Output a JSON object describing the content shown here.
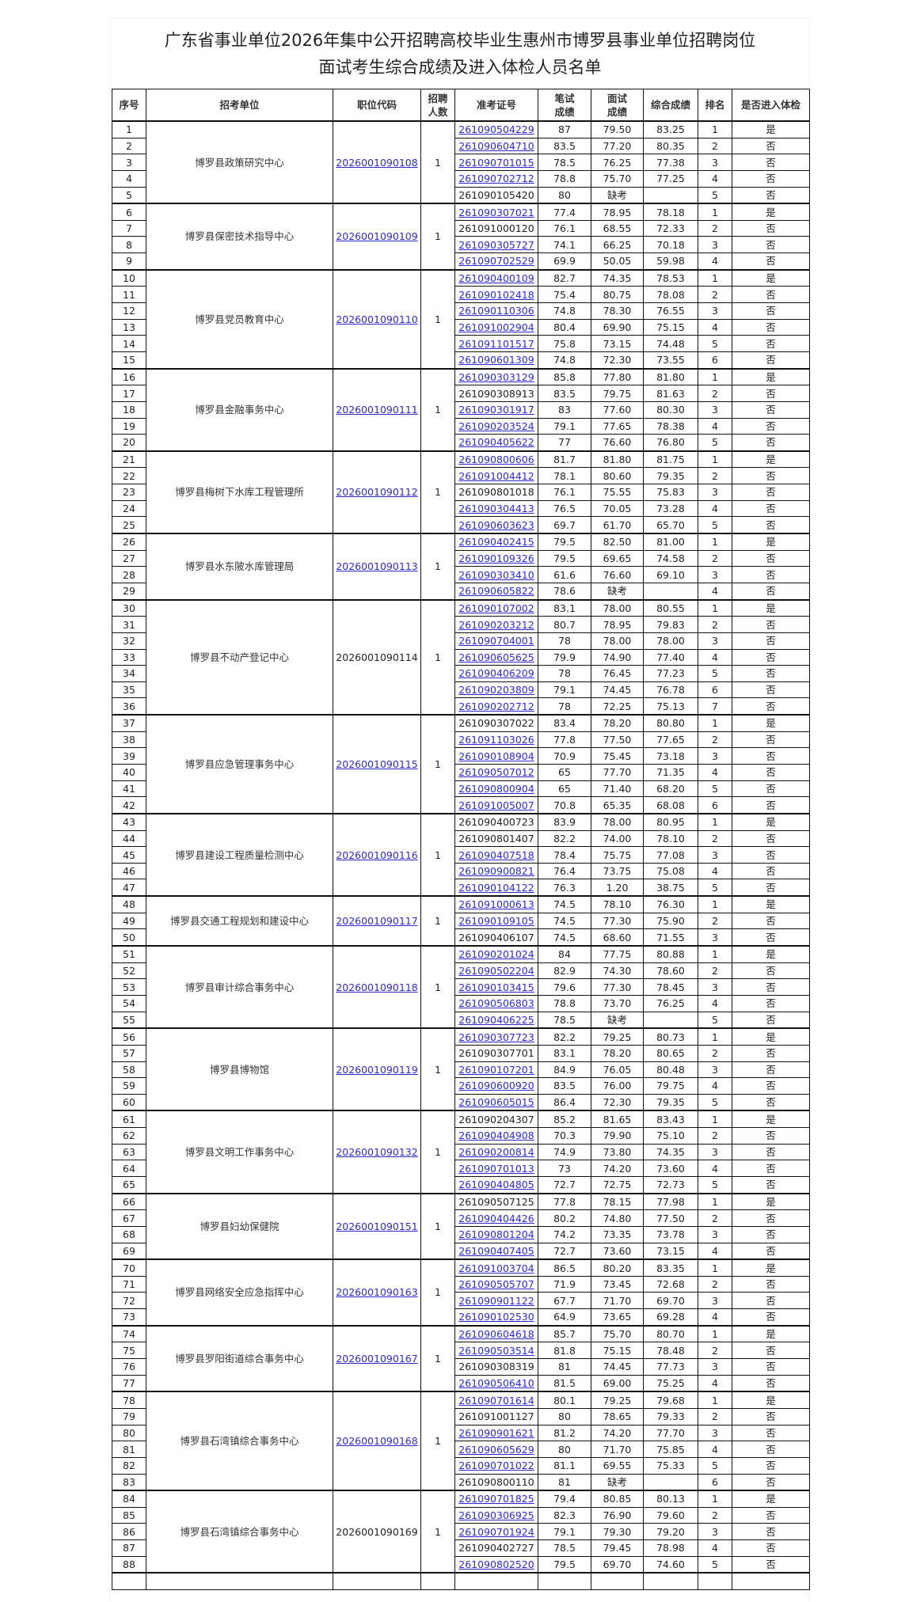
{
  "title_line1": "广东省事业单位2026年集中公开招聘高校毕业生惠州市博罗县事业单位招聘岗位",
  "title_line2": "面试考生综合成绩及进入体检人员名单",
  "headers": {
    "seq": "序号",
    "unit": "招考单位",
    "code": "职位代码",
    "count": "招聘人数",
    "id": "准考证号",
    "written": "笔试成绩",
    "interview": "面试成绩",
    "total": "综合成绩",
    "rank": "排名",
    "pass": "是否进入体检"
  },
  "link_color": "#2b2bd0",
  "groups": [
    {
      "unit": "博罗县政策研究中心",
      "code": "2026001090108",
      "code_link": true,
      "count": "1",
      "rows": [
        [
          "1",
          "261090504229",
          1,
          "87",
          "79.50",
          "83.25",
          "1",
          "是"
        ],
        [
          "2",
          "261090604710",
          1,
          "83.5",
          "77.20",
          "80.35",
          "2",
          "否"
        ],
        [
          "3",
          "261090701015",
          1,
          "78.5",
          "76.25",
          "77.38",
          "3",
          "否"
        ],
        [
          "4",
          "261090702712",
          1,
          "78.8",
          "75.70",
          "77.25",
          "4",
          "否"
        ],
        [
          "5",
          "261090105420",
          0,
          "80",
          "缺考",
          "",
          "5",
          "否"
        ]
      ]
    },
    {
      "unit": "博罗县保密技术指导中心",
      "code": "2026001090109",
      "code_link": true,
      "count": "1",
      "rows": [
        [
          "6",
          "261090307021",
          1,
          "77.4",
          "78.95",
          "78.18",
          "1",
          "是"
        ],
        [
          "7",
          "261091000120",
          0,
          "76.1",
          "68.55",
          "72.33",
          "2",
          "否"
        ],
        [
          "8",
          "261090305727",
          1,
          "74.1",
          "66.25",
          "70.18",
          "3",
          "否"
        ],
        [
          "9",
          "261090702529",
          1,
          "69.9",
          "50.05",
          "59.98",
          "4",
          "否"
        ]
      ]
    },
    {
      "unit": "博罗县党员教育中心",
      "code": "2026001090110",
      "code_link": true,
      "count": "1",
      "rows": [
        [
          "10",
          "261090400109",
          1,
          "82.7",
          "74.35",
          "78.53",
          "1",
          "是"
        ],
        [
          "11",
          "261090102418",
          1,
          "75.4",
          "80.75",
          "78.08",
          "2",
          "否"
        ],
        [
          "12",
          "261090110306",
          1,
          "74.8",
          "78.30",
          "76.55",
          "3",
          "否"
        ],
        [
          "13",
          "261091002904",
          1,
          "80.4",
          "69.90",
          "75.15",
          "4",
          "否"
        ],
        [
          "14",
          "261091101517",
          1,
          "75.8",
          "73.15",
          "74.48",
          "5",
          "否"
        ],
        [
          "15",
          "261090601309",
          1,
          "74.8",
          "72.30",
          "73.55",
          "6",
          "否"
        ]
      ]
    },
    {
      "unit": "博罗县金融事务中心",
      "code": "2026001090111",
      "code_link": true,
      "count": "1",
      "rows": [
        [
          "16",
          "261090303129",
          1,
          "85.8",
          "77.80",
          "81.80",
          "1",
          "是"
        ],
        [
          "17",
          "261090308913",
          0,
          "83.5",
          "79.75",
          "81.63",
          "2",
          "否"
        ],
        [
          "18",
          "261090301917",
          1,
          "83",
          "77.60",
          "80.30",
          "3",
          "否"
        ],
        [
          "19",
          "261090203524",
          1,
          "79.1",
          "77.65",
          "78.38",
          "4",
          "否"
        ],
        [
          "20",
          "261090405622",
          1,
          "77",
          "76.60",
          "76.80",
          "5",
          "否"
        ]
      ]
    },
    {
      "unit": "博罗县梅树下水库工程管理所",
      "code": "2026001090112",
      "code_link": true,
      "count": "1",
      "rows": [
        [
          "21",
          "261090800606",
          1,
          "81.7",
          "81.80",
          "81.75",
          "1",
          "是"
        ],
        [
          "22",
          "261091004412",
          1,
          "78.1",
          "80.60",
          "79.35",
          "2",
          "否"
        ],
        [
          "23",
          "261090801018",
          0,
          "76.1",
          "75.55",
          "75.83",
          "3",
          "否"
        ],
        [
          "24",
          "261090304413",
          1,
          "76.5",
          "70.05",
          "73.28",
          "4",
          "否"
        ],
        [
          "25",
          "261090603623",
          1,
          "69.7",
          "61.70",
          "65.70",
          "5",
          "否"
        ]
      ]
    },
    {
      "unit": "博罗县水东陂水库管理局",
      "code": "2026001090113",
      "code_link": true,
      "count": "1",
      "rows": [
        [
          "26",
          "261090402415",
          1,
          "79.5",
          "82.50",
          "81.00",
          "1",
          "是"
        ],
        [
          "27",
          "261090109326",
          1,
          "79.5",
          "69.65",
          "74.58",
          "2",
          "否"
        ],
        [
          "28",
          "261090303410",
          1,
          "61.6",
          "76.60",
          "69.10",
          "3",
          "否"
        ],
        [
          "29",
          "261090605822",
          1,
          "78.6",
          "缺考",
          "",
          "4",
          "否"
        ]
      ]
    },
    {
      "unit": "博罗县不动产登记中心",
      "code": "2026001090114",
      "code_link": false,
      "count": "1",
      "rows": [
        [
          "30",
          "261090107002",
          1,
          "83.1",
          "78.00",
          "80.55",
          "1",
          "是"
        ],
        [
          "31",
          "261090203212",
          1,
          "80.7",
          "78.95",
          "79.83",
          "2",
          "否"
        ],
        [
          "32",
          "261090704001",
          1,
          "78",
          "78.00",
          "78.00",
          "3",
          "否"
        ],
        [
          "33",
          "261090605625",
          1,
          "79.9",
          "74.90",
          "77.40",
          "4",
          "否"
        ],
        [
          "34",
          "261090406209",
          1,
          "78",
          "76.45",
          "77.23",
          "5",
          "否"
        ],
        [
          "35",
          "261090203809",
          1,
          "79.1",
          "74.45",
          "76.78",
          "6",
          "否"
        ],
        [
          "36",
          "261090202712",
          1,
          "78",
          "72.25",
          "75.13",
          "7",
          "否"
        ]
      ]
    },
    {
      "unit": "博罗县应急管理事务中心",
      "code": "2026001090115",
      "code_link": true,
      "count": "1",
      "rows": [
        [
          "37",
          "261090307022",
          0,
          "83.4",
          "78.20",
          "80.80",
          "1",
          "是"
        ],
        [
          "38",
          "261091103026",
          1,
          "77.8",
          "77.50",
          "77.65",
          "2",
          "否"
        ],
        [
          "39",
          "261090108904",
          1,
          "70.9",
          "75.45",
          "73.18",
          "3",
          "否"
        ],
        [
          "40",
          "261090507012",
          1,
          "65",
          "77.70",
          "71.35",
          "4",
          "否"
        ],
        [
          "41",
          "261090800904",
          1,
          "65",
          "71.40",
          "68.20",
          "5",
          "否"
        ],
        [
          "42",
          "261091005007",
          1,
          "70.8",
          "65.35",
          "68.08",
          "6",
          "否"
        ]
      ]
    },
    {
      "unit": "博罗县建设工程质量检测中心",
      "code": "2026001090116",
      "code_link": true,
      "count": "1",
      "rows": [
        [
          "43",
          "261090400723",
          0,
          "83.9",
          "78.00",
          "80.95",
          "1",
          "是"
        ],
        [
          "44",
          "261090801407",
          0,
          "82.2",
          "74.00",
          "78.10",
          "2",
          "否"
        ],
        [
          "45",
          "261090407518",
          1,
          "78.4",
          "75.75",
          "77.08",
          "3",
          "否"
        ],
        [
          "46",
          "261090900821",
          1,
          "76.4",
          "73.75",
          "75.08",
          "4",
          "否"
        ],
        [
          "47",
          "261090104122",
          1,
          "76.3",
          "1.20",
          "38.75",
          "5",
          "否"
        ]
      ]
    },
    {
      "unit": "博罗县交通工程规划和建设中心",
      "code": "2026001090117",
      "code_link": true,
      "count": "1",
      "rows": [
        [
          "48",
          "261091000613",
          1,
          "74.5",
          "78.10",
          "76.30",
          "1",
          "是"
        ],
        [
          "49",
          "261090109105",
          1,
          "74.5",
          "77.30",
          "75.90",
          "2",
          "否"
        ],
        [
          "50",
          "261090406107",
          0,
          "74.5",
          "68.60",
          "71.55",
          "3",
          "否"
        ]
      ]
    },
    {
      "unit": "博罗县审计综合事务中心",
      "code": "2026001090118",
      "code_link": true,
      "count": "1",
      "rows": [
        [
          "51",
          "261090201024",
          1,
          "84",
          "77.75",
          "80.88",
          "1",
          "是"
        ],
        [
          "52",
          "261090502204",
          1,
          "82.9",
          "74.30",
          "78.60",
          "2",
          "否"
        ],
        [
          "53",
          "261090103415",
          1,
          "79.6",
          "77.30",
          "78.45",
          "3",
          "否"
        ],
        [
          "54",
          "261090506803",
          1,
          "78.8",
          "73.70",
          "76.25",
          "4",
          "否"
        ],
        [
          "55",
          "261090406225",
          1,
          "78.5",
          "缺考",
          "",
          "5",
          "否"
        ]
      ]
    },
    {
      "unit": "博罗县博物馆",
      "code": "2026001090119",
      "code_link": true,
      "count": "1",
      "rows": [
        [
          "56",
          "261090307723",
          1,
          "82.2",
          "79.25",
          "80.73",
          "1",
          "是"
        ],
        [
          "57",
          "261090307701",
          0,
          "83.1",
          "78.20",
          "80.65",
          "2",
          "否"
        ],
        [
          "58",
          "261090107201",
          1,
          "84.9",
          "76.05",
          "80.48",
          "3",
          "否"
        ],
        [
          "59",
          "261090600920",
          1,
          "83.5",
          "76.00",
          "79.75",
          "4",
          "否"
        ],
        [
          "60",
          "261090605015",
          1,
          "86.4",
          "72.30",
          "79.35",
          "5",
          "否"
        ]
      ]
    },
    {
      "unit": "博罗县文明工作事务中心",
      "code": "2026001090132",
      "code_link": true,
      "count": "1",
      "rows": [
        [
          "61",
          "261090204307",
          0,
          "85.2",
          "81.65",
          "83.43",
          "1",
          "是"
        ],
        [
          "62",
          "261090404908",
          1,
          "70.3",
          "79.90",
          "75.10",
          "2",
          "否"
        ],
        [
          "63",
          "261090200814",
          1,
          "74.9",
          "73.80",
          "74.35",
          "3",
          "否"
        ],
        [
          "64",
          "261090701013",
          1,
          "73",
          "74.20",
          "73.60",
          "4",
          "否"
        ],
        [
          "65",
          "261090404805",
          1,
          "72.7",
          "72.75",
          "72.73",
          "5",
          "否"
        ]
      ]
    },
    {
      "unit": "博罗县妇幼保健院",
      "code": "2026001090151",
      "code_link": true,
      "count": "1",
      "rows": [
        [
          "66",
          "261090507125",
          0,
          "77.8",
          "78.15",
          "77.98",
          "1",
          "是"
        ],
        [
          "67",
          "261090404426",
          1,
          "80.2",
          "74.80",
          "77.50",
          "2",
          "否"
        ],
        [
          "68",
          "261090801204",
          1,
          "74.2",
          "73.35",
          "73.78",
          "3",
          "否"
        ],
        [
          "69",
          "261090407405",
          1,
          "72.7",
          "73.60",
          "73.15",
          "4",
          "否"
        ]
      ]
    },
    {
      "unit": "博罗县网络安全应急指挥中心",
      "code": "2026001090163",
      "code_link": true,
      "count": "1",
      "rows": [
        [
          "70",
          "261091003704",
          1,
          "86.5",
          "80.20",
          "83.35",
          "1",
          "是"
        ],
        [
          "71",
          "261090505707",
          1,
          "71.9",
          "73.45",
          "72.68",
          "2",
          "否"
        ],
        [
          "72",
          "261090901122",
          1,
          "67.7",
          "71.70",
          "69.70",
          "3",
          "否"
        ],
        [
          "73",
          "261090102530",
          1,
          "64.9",
          "73.65",
          "69.28",
          "4",
          "否"
        ]
      ]
    },
    {
      "unit": "博罗县罗阳街道综合事务中心",
      "code": "2026001090167",
      "code_link": true,
      "count": "1",
      "rows": [
        [
          "74",
          "261090604618",
          1,
          "85.7",
          "75.70",
          "80.70",
          "1",
          "是"
        ],
        [
          "75",
          "261090503514",
          1,
          "81.8",
          "75.15",
          "78.48",
          "2",
          "否"
        ],
        [
          "76",
          "261090308319",
          0,
          "81",
          "74.45",
          "77.73",
          "3",
          "否"
        ],
        [
          "77",
          "261090506410",
          1,
          "81.5",
          "69.00",
          "75.25",
          "4",
          "否"
        ]
      ]
    },
    {
      "unit": "博罗县石湾镇综合事务中心",
      "code": "2026001090168",
      "code_link": true,
      "count": "1",
      "rows": [
        [
          "78",
          "261090701614",
          1,
          "80.1",
          "79.25",
          "79.68",
          "1",
          "是"
        ],
        [
          "79",
          "261091001127",
          0,
          "80",
          "78.65",
          "79.33",
          "2",
          "否"
        ],
        [
          "80",
          "261090901621",
          1,
          "81.2",
          "74.20",
          "77.70",
          "3",
          "否"
        ],
        [
          "81",
          "261090605629",
          1,
          "80",
          "71.70",
          "75.85",
          "4",
          "否"
        ],
        [
          "82",
          "261090701022",
          1,
          "81.1",
          "69.55",
          "75.33",
          "5",
          "否"
        ],
        [
          "83",
          "261090800110",
          0,
          "81",
          "缺考",
          "",
          "6",
          "否"
        ]
      ]
    },
    {
      "unit": "博罗县石湾镇综合事务中心",
      "code": "2026001090169",
      "code_link": false,
      "count": "1",
      "rows": [
        [
          "84",
          "261090701825",
          1,
          "79.4",
          "80.85",
          "80.13",
          "1",
          "是"
        ],
        [
          "85",
          "261090306925",
          1,
          "82.3",
          "76.90",
          "79.60",
          "2",
          "否"
        ],
        [
          "86",
          "261090701924",
          1,
          "79.1",
          "79.30",
          "79.20",
          "3",
          "否"
        ],
        [
          "87",
          "261090402727",
          0,
          "78.5",
          "79.45",
          "78.98",
          "4",
          "否"
        ],
        [
          "88",
          "261090802520",
          1,
          "79.5",
          "69.70",
          "74.60",
          "5",
          "否"
        ]
      ]
    }
  ]
}
